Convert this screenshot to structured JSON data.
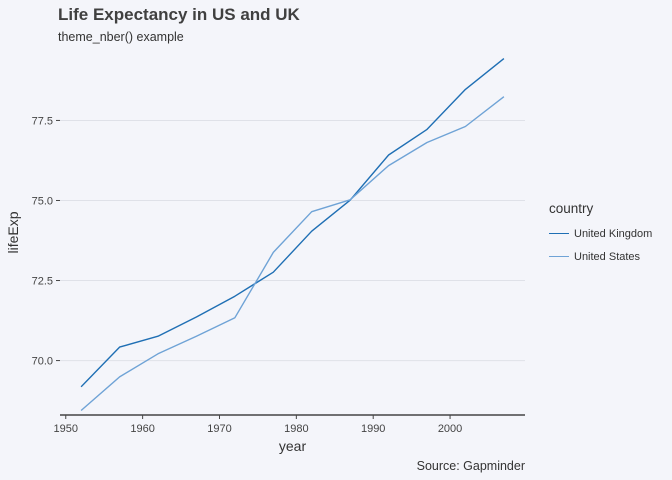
{
  "title": "Life Expectancy in US and UK",
  "subtitle": "theme_nber() example",
  "caption": "Source: Gapminder",
  "legend": {
    "title": "country",
    "items": [
      {
        "label": "United Kingdom",
        "color": "#1f6fb4"
      },
      {
        "label": "United States",
        "color": "#6fa3d6"
      }
    ]
  },
  "chart_data": {
    "type": "line",
    "xlabel": "year",
    "ylabel": "lifeExp",
    "xlim": [
      1949.25,
      2009.75
    ],
    "ylim": [
      68.3,
      79.7
    ],
    "xticks": [
      1950,
      1960,
      1970,
      1980,
      1990,
      2000
    ],
    "yticks": [
      70.0,
      72.5,
      75.0,
      77.5
    ],
    "ytick_labels": [
      "70.0",
      "72.5",
      "75.0",
      "77.5"
    ],
    "grid": "horizontal",
    "legend_position": "right",
    "x": [
      1952,
      1957,
      1962,
      1967,
      1972,
      1977,
      1982,
      1987,
      1992,
      1997,
      2002,
      2007
    ],
    "series": [
      {
        "name": "United Kingdom",
        "color": "#1f6fb4",
        "values": [
          69.18,
          70.42,
          70.76,
          71.36,
          72.01,
          72.76,
          74.04,
          75.01,
          76.42,
          77.22,
          78.47,
          79.43
        ]
      },
      {
        "name": "United States",
        "color": "#6fa3d6",
        "values": [
          68.44,
          69.49,
          70.21,
          70.76,
          71.34,
          73.38,
          74.65,
          75.02,
          76.09,
          76.81,
          77.31,
          78.24
        ]
      }
    ]
  }
}
